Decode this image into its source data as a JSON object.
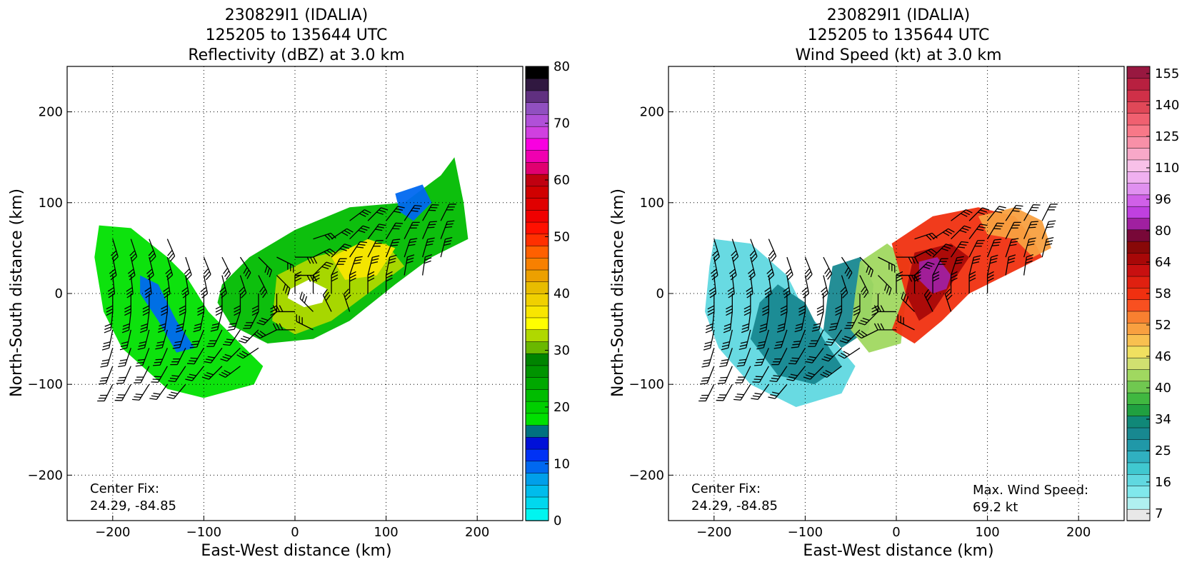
{
  "chart_data": [
    {
      "type": "heatmap",
      "title_lines": [
        "230829I1 (IDALIA)",
        "125205 to 135644 UTC",
        "Reflectivity (dBZ) at 3.0 km"
      ],
      "xlabel": "East-West distance (km)",
      "ylabel": "North-South distance (km)",
      "xlim": [
        -250,
        250
      ],
      "ylim": [
        -250,
        250
      ],
      "xticks": [
        -200,
        -100,
        0,
        100,
        200
      ],
      "yticks": [
        -200,
        -100,
        0,
        100,
        200
      ],
      "grid": true,
      "annotation_left": [
        "Center Fix:",
        "24.29, -84.85"
      ],
      "colorbar": {
        "vmin": 0,
        "vmax": 80,
        "ticks": [
          0,
          10,
          20,
          30,
          40,
          50,
          60,
          70,
          80
        ],
        "colors": [
          "#00f5f0",
          "#00d8ee",
          "#00bcec",
          "#009fea",
          "#0068f0",
          "#0032f5",
          "#0010d8",
          "#007080",
          "#00e000",
          "#00cf00",
          "#00bc00",
          "#00a800",
          "#009400",
          "#008400",
          "#6ab800",
          "#b0d800",
          "#ffff00",
          "#f8e600",
          "#f0d000",
          "#e8bc00",
          "#eca000",
          "#f88000",
          "#ff6000",
          "#ff3000",
          "#ff1000",
          "#f00000",
          "#e00000",
          "#d00000",
          "#c00010",
          "#e00070",
          "#f000b0",
          "#f800e0",
          "#d040e0",
          "#b050d8",
          "#9050c0",
          "#603080",
          "#301840",
          "#000000"
        ]
      },
      "contours": [
        {
          "level": "15-20",
          "points": [
            [
              -215,
              75
            ],
            [
              -180,
              72
            ],
            [
              -140,
              40
            ],
            [
              -120,
              20
            ],
            [
              -95,
              -20
            ],
            [
              -60,
              -55
            ],
            [
              -35,
              -80
            ],
            [
              -45,
              -100
            ],
            [
              -100,
              -115
            ],
            [
              -140,
              -105
            ],
            [
              -190,
              -60
            ],
            [
              -210,
              -20
            ],
            [
              -220,
              40
            ]
          ]
        },
        {
          "level": "20-30",
          "points": [
            [
              -80,
              10
            ],
            [
              -50,
              40
            ],
            [
              0,
              70
            ],
            [
              60,
              95
            ],
            [
              120,
              100
            ],
            [
              160,
              130
            ],
            [
              175,
              150
            ],
            [
              185,
              100
            ],
            [
              190,
              60
            ],
            [
              150,
              40
            ],
            [
              110,
              10
            ],
            [
              60,
              -30
            ],
            [
              20,
              -50
            ],
            [
              -30,
              -55
            ],
            [
              -70,
              -35
            ],
            [
              -85,
              -10
            ]
          ]
        },
        {
          "level": "30-40",
          "points": [
            [
              -20,
              20
            ],
            [
              20,
              40
            ],
            [
              60,
              50
            ],
            [
              100,
              55
            ],
            [
              120,
              30
            ],
            [
              80,
              0
            ],
            [
              40,
              -30
            ],
            [
              0,
              -45
            ],
            [
              -25,
              -30
            ]
          ]
        },
        {
          "level": "35-40",
          "points": [
            [
              40,
              40
            ],
            [
              80,
              60
            ],
            [
              110,
              50
            ],
            [
              90,
              20
            ],
            [
              55,
              15
            ]
          ]
        },
        {
          "level": "10-15",
          "points": [
            [
              -170,
              20
            ],
            [
              -150,
              10
            ],
            [
              -130,
              -30
            ],
            [
              -110,
              -60
            ],
            [
              -130,
              -65
            ],
            [
              -150,
              -30
            ],
            [
              -170,
              0
            ]
          ]
        },
        {
          "level": "10-15",
          "points": [
            [
              110,
              110
            ],
            [
              140,
              120
            ],
            [
              150,
              100
            ],
            [
              130,
              80
            ],
            [
              115,
              90
            ]
          ]
        },
        {
          "level": "0",
          "points": [
            [
              -5,
              5
            ],
            [
              15,
              15
            ],
            [
              35,
              5
            ],
            [
              30,
              -10
            ],
            [
              10,
              -15
            ],
            [
              -8,
              -5
            ]
          ]
        }
      ],
      "wind_barbs": {
        "source": "wind speed/direction field at 3.0 km",
        "count_note": "barbs plotted over storm area"
      }
    },
    {
      "type": "heatmap",
      "title_lines": [
        "230829I1 (IDALIA)",
        "125205 to 135644 UTC",
        "Wind Speed (kt) at 3.0 km"
      ],
      "xlabel": "East-West distance (km)",
      "ylabel": "North-South distance (km)",
      "xlim": [
        -250,
        250
      ],
      "ylim": [
        -250,
        250
      ],
      "xticks": [
        -200,
        -100,
        0,
        100,
        200
      ],
      "yticks": [
        -200,
        -100,
        0,
        100,
        200
      ],
      "grid": true,
      "annotation_left": [
        "Center Fix:",
        "24.29, -84.85"
      ],
      "annotation_right": [
        "Max. Wind Speed:",
        "69.2 kt"
      ],
      "colorbar": {
        "ticks": [
          "7",
          "16",
          "25",
          "34",
          "40",
          "46",
          "52",
          "58",
          "64",
          "80",
          "96",
          "110",
          "125",
          "140",
          "155"
        ],
        "colors": [
          "#e8e8e8",
          "#b0f0f0",
          "#80e8ec",
          "#60d8e0",
          "#40c8d0",
          "#30b0c0",
          "#2098a8",
          "#188890",
          "#108878",
          "#20a040",
          "#40b840",
          "#70c850",
          "#a0d860",
          "#d0e070",
          "#f0e060",
          "#f8c050",
          "#f8a040",
          "#f88030",
          "#f85020",
          "#f03010",
          "#e02010",
          "#c81010",
          "#a80808",
          "#880808",
          "#780838",
          "#a020a0",
          "#c040e0",
          "#d060e8",
          "#e090f0",
          "#f0b0f0",
          "#f8c0e8",
          "#f8a8c8",
          "#f890a8",
          "#f87888",
          "#f06070",
          "#e04858",
          "#d03048",
          "#b82040",
          "#981840"
        ]
      },
      "contours": [
        {
          "level": "16-25",
          "points": [
            [
              -200,
              60
            ],
            [
              -160,
              55
            ],
            [
              -120,
              20
            ],
            [
              -100,
              -20
            ],
            [
              -70,
              -50
            ],
            [
              -45,
              -80
            ],
            [
              -60,
              -110
            ],
            [
              -110,
              -125
            ],
            [
              -160,
              -100
            ],
            [
              -195,
              -60
            ],
            [
              -210,
              -20
            ],
            [
              -205,
              30
            ]
          ]
        },
        {
          "level": "25-34",
          "points": [
            [
              -130,
              10
            ],
            [
              -100,
              -10
            ],
            [
              -80,
              -50
            ],
            [
              -60,
              -80
            ],
            [
              -90,
              -100
            ],
            [
              -130,
              -90
            ],
            [
              -160,
              -50
            ],
            [
              -150,
              -10
            ]
          ]
        },
        {
          "level": "25-34",
          "points": [
            [
              -70,
              30
            ],
            [
              -40,
              40
            ],
            [
              -25,
              10
            ],
            [
              -30,
              -40
            ],
            [
              -60,
              -60
            ],
            [
              -80,
              -40
            ],
            [
              -75,
              0
            ]
          ]
        },
        {
          "level": "34-46",
          "points": [
            [
              -40,
              35
            ],
            [
              -10,
              55
            ],
            [
              15,
              35
            ],
            [
              10,
              -10
            ],
            [
              5,
              -55
            ],
            [
              -30,
              -65
            ],
            [
              -50,
              -40
            ],
            [
              -45,
              0
            ]
          ]
        },
        {
          "level": "52-58",
          "points": [
            [
              -5,
              55
            ],
            [
              40,
              85
            ],
            [
              90,
              95
            ],
            [
              130,
              85
            ],
            [
              150,
              60
            ],
            [
              160,
              40
            ],
            [
              120,
              20
            ],
            [
              80,
              0
            ],
            [
              50,
              -30
            ],
            [
              20,
              -55
            ],
            [
              -5,
              -40
            ],
            [
              10,
              0
            ]
          ]
        },
        {
          "level": "46-52",
          "points": [
            [
              90,
              85
            ],
            [
              130,
              95
            ],
            [
              160,
              80
            ],
            [
              170,
              50
            ],
            [
              150,
              40
            ],
            [
              130,
              60
            ],
            [
              100,
              65
            ]
          ]
        },
        {
          "level": "58-64",
          "points": [
            [
              20,
              45
            ],
            [
              60,
              55
            ],
            [
              80,
              40
            ],
            [
              60,
              10
            ],
            [
              40,
              -20
            ],
            [
              25,
              -30
            ],
            [
              10,
              0
            ]
          ]
        },
        {
          "level": "64-80",
          "points": [
            [
              25,
              35
            ],
            [
              45,
              40
            ],
            [
              60,
              20
            ],
            [
              55,
              5
            ],
            [
              40,
              0
            ],
            [
              25,
              15
            ]
          ]
        }
      ],
      "wind_barbs": {
        "source": "wind speed/direction field at 3.0 km",
        "count_note": "barbs plotted over storm area"
      }
    }
  ]
}
